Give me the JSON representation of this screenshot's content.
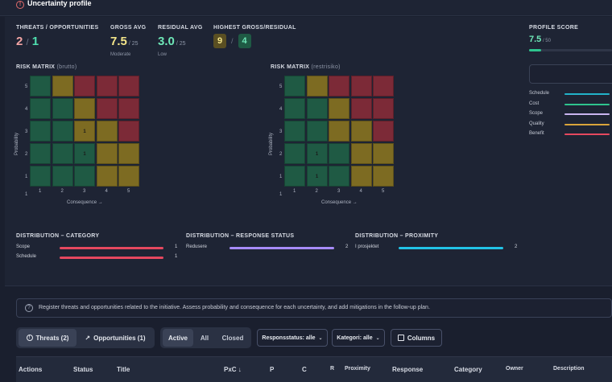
{
  "header": {
    "title": "Uncertainty profile",
    "icon": "warning-circle-icon"
  },
  "stats": {
    "threats_opps": {
      "label": "THREATS / OPPORTUNITIES",
      "threats": "2",
      "sep": "/",
      "opps": "1"
    },
    "gross_avg": {
      "label": "GROSS AVG",
      "value": "7.5",
      "max": "/ 25",
      "level": "Moderate"
    },
    "residual_avg": {
      "label": "RESIDUAL AVG",
      "value": "3.0",
      "max": "/ 25",
      "level": "Low"
    },
    "highest": {
      "label": "HIGHEST GROSS/RESIDUAL",
      "gross": "9",
      "sep": "/",
      "residual": "4"
    },
    "profile_score": {
      "label": "PROFILE SCORE",
      "value": "7.5",
      "max": "/ 50",
      "fill_fraction": 0.15
    }
  },
  "matrix_brutto": {
    "title": "RISK MATRIX",
    "subtitle": "(brutto)",
    "ylabel": "Probability",
    "xlabel": "Consequence →",
    "rows": [
      [
        "g",
        "y",
        "r",
        "r",
        "r"
      ],
      [
        "g",
        "g",
        "y",
        "r",
        "r"
      ],
      [
        "g",
        "g",
        "y",
        "y",
        "r"
      ],
      [
        "g",
        "g",
        "g",
        "y",
        "y"
      ],
      [
        "g",
        "g",
        "g",
        "y",
        "y"
      ]
    ],
    "counts": [
      [
        "",
        "",
        "",
        "",
        ""
      ],
      [
        "",
        "",
        "",
        "",
        ""
      ],
      [
        "",
        "",
        "1",
        "",
        ""
      ],
      [
        "",
        "",
        "1",
        "",
        ""
      ],
      [
        "",
        "",
        "",
        "",
        ""
      ]
    ],
    "y_ticks": [
      "5",
      "4",
      "3",
      "2",
      "1"
    ],
    "x_ticks": [
      "1",
      "2",
      "3",
      "4",
      "5"
    ]
  },
  "matrix_rest": {
    "title": "RISK MATRIX",
    "subtitle": "(restrisiko)",
    "ylabel": "Probability",
    "xlabel": "Consequence →",
    "rows": [
      [
        "g",
        "y",
        "r",
        "r",
        "r"
      ],
      [
        "g",
        "g",
        "y",
        "r",
        "r"
      ],
      [
        "g",
        "g",
        "y",
        "y",
        "r"
      ],
      [
        "g",
        "g",
        "g",
        "y",
        "y"
      ],
      [
        "g",
        "g",
        "g",
        "y",
        "y"
      ]
    ],
    "counts": [
      [
        "",
        "",
        "",
        "",
        ""
      ],
      [
        "",
        "",
        "",
        "",
        ""
      ],
      [
        "",
        "",
        "",
        "",
        ""
      ],
      [
        "",
        "1",
        "",
        "",
        ""
      ],
      [
        "",
        "1",
        "",
        "",
        ""
      ]
    ],
    "y_ticks": [
      "5",
      "4",
      "3",
      "2",
      "1"
    ],
    "x_ticks": [
      "1",
      "2",
      "3",
      "4",
      "5"
    ]
  },
  "score_legend": [
    {
      "name": "Schedule",
      "color": "#22b3c9"
    },
    {
      "name": "Cost",
      "color": "#2ec48e"
    },
    {
      "name": "Scope",
      "color": "#c9b5f0"
    },
    {
      "name": "Quality",
      "color": "#d9a43a"
    },
    {
      "name": "Benefit",
      "color": "#e5485f"
    }
  ],
  "dist_category": {
    "title": "DISTRIBUTION – CATEGORY",
    "items": [
      {
        "name": "Scope",
        "value": "1",
        "color": "#e5485f"
      },
      {
        "name": "Schedule",
        "value": "1",
        "color": "#e5485f"
      }
    ]
  },
  "dist_response": {
    "title": "DISTRIBUTION – RESPONSE STATUS",
    "items": [
      {
        "name": "Redusere",
        "value": "2",
        "color": "#a78bfa"
      }
    ]
  },
  "dist_proximity": {
    "title": "DISTRIBUTION – PROXIMITY",
    "items": [
      {
        "name": "I prosjektet",
        "value": "2",
        "color": "#22c3e6"
      }
    ]
  },
  "info": {
    "text": "Register threats and opportunities related to the initiative. Assess probability and consequence for each uncertainty, and add mitigations in the follow-up plan."
  },
  "toolbar": {
    "threats": "Threats (2)",
    "opportunities": "Opportunities (1)",
    "active": "Active",
    "all": "All",
    "closed": "Closed",
    "response_filter": "Responsstatus: alle",
    "category_filter": "Kategori: alle",
    "columns": "Columns"
  },
  "table": {
    "headers": [
      "Actions",
      "Status",
      "Title",
      "PxC ↓",
      "P",
      "C",
      "R",
      "Proximity",
      "Response",
      "Category",
      "Owner",
      "Description"
    ]
  }
}
